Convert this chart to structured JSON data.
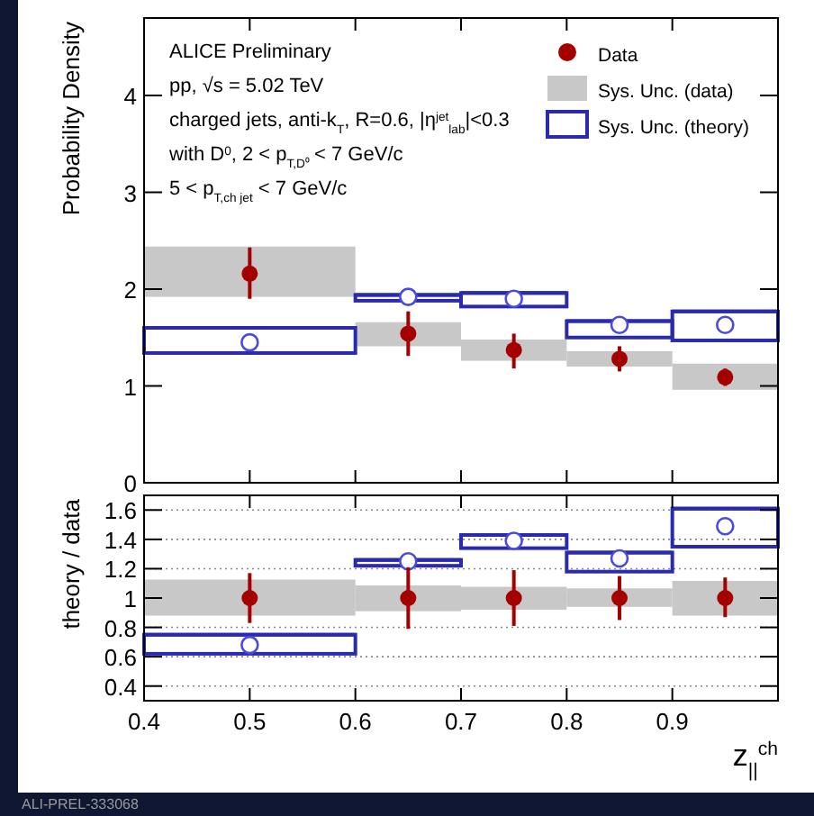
{
  "chart_data": [
    {
      "type": "scatter",
      "ylabel": "Probability Density",
      "xlim": [
        0.4,
        1.0
      ],
      "ylim": [
        0,
        4.8
      ],
      "xticks": [
        0.4,
        0.5,
        0.6,
        0.7,
        0.8,
        0.9,
        1.0
      ],
      "yticks": [
        0,
        1,
        2,
        3,
        4
      ],
      "tick_labels": "y",
      "legend": "top right",
      "annotations": [
        "ALICE Preliminary",
        "pp, √s = 5.02 TeV",
        "charged jets, anti-k$_{T}$, R=0.6, |η$^{jet}$$_{lab}$|<0.3",
        "with D$^{0}$, 2 < p$_{T,D⁰}$ < 7 GeV/c",
        "5 < p$_{T,ch jet}$ < 7 GeV/c"
      ],
      "series": [
        {
          "name": "Data",
          "marker": "circle",
          "color": "#a50000",
          "x": [
            0.5,
            0.65,
            0.75,
            0.85,
            0.95
          ],
          "values": [
            2.16,
            1.54,
            1.37,
            1.28,
            1.09
          ],
          "errors": [
            [
              1.9,
              2.43
            ],
            [
              1.31,
              1.77
            ],
            [
              1.18,
              1.54
            ],
            [
              1.15,
              1.41
            ],
            [
              1.0,
              1.18
            ]
          ]
        },
        {
          "name": "Sys. Unc. (data)",
          "type": "bar",
          "color": "#c8c8c8",
          "x": [
            0.5,
            0.65,
            0.75,
            0.85,
            0.95
          ],
          "xerrors": [
            0.1,
            0.05,
            0.05,
            0.05,
            0.05
          ],
          "base": [
            1.92,
            1.41,
            1.26,
            1.2,
            0.96
          ],
          "values": [
            0.51,
            0.24,
            0.21,
            0.15,
            0.26
          ]
        },
        {
          "marker": "circle",
          "line_style": "solid",
          "color": "#4a4ae0",
          "x": [
            0.5,
            0.65,
            0.75,
            0.85,
            0.95
          ],
          "values": [
            1.45,
            1.92,
            1.9,
            1.63,
            1.63
          ]
        },
        {
          "name": "Sys. Unc. (theory)",
          "type": "bar",
          "line_style": "solid",
          "color": "#2a2ab0",
          "x": [
            0.5,
            0.65,
            0.75,
            0.85,
            0.95
          ],
          "xerrors": [
            0.1,
            0.05,
            0.05,
            0.05,
            0.05
          ],
          "base": [
            1.34,
            1.88,
            1.82,
            1.5,
            1.47
          ],
          "values": [
            0.26,
            0.06,
            0.14,
            0.17,
            0.3
          ]
        }
      ]
    },
    {
      "type": "scatter",
      "ylabel": "theory / data",
      "xlabel": "z$_{||}$$^{ch}$",
      "xlim": [
        0.4,
        1.0
      ],
      "ylim": [
        0.3,
        1.7
      ],
      "xticks": [
        0.4,
        0.5,
        0.6,
        0.7,
        0.8,
        0.9
      ],
      "yticks": [
        0.4,
        0.6,
        0.8,
        1,
        1.2,
        1.4,
        1.6
      ],
      "grid": "y",
      "annotations": [
        "ALI-PREL-333068"
      ],
      "series": [
        {
          "marker": "circle",
          "color": "#a50000",
          "x": [
            0.5,
            0.65,
            0.75,
            0.85,
            0.95
          ],
          "values": [
            1,
            1,
            1,
            1,
            1
          ],
          "errors": [
            [
              0.83,
              1.17
            ],
            [
              0.79,
              1.21
            ],
            [
              0.81,
              1.19
            ],
            [
              0.85,
              1.15
            ],
            [
              0.87,
              1.14
            ]
          ]
        },
        {
          "type": "bar",
          "color": "#c8c8c8",
          "x": [
            0.5,
            0.65,
            0.75,
            0.85,
            0.95
          ],
          "xerrors": [
            0.1,
            0.05,
            0.05,
            0.05,
            0.05
          ],
          "base": [
            0.88,
            0.91,
            0.92,
            0.94,
            0.88
          ],
          "values": [
            0.24,
            0.17,
            0.15,
            0.12,
            0.23
          ]
        },
        {
          "marker": "circle",
          "line_style": "solid",
          "color": "#4a4ae0",
          "x": [
            0.5,
            0.65,
            0.75,
            0.85,
            0.95
          ],
          "values": [
            0.68,
            1.25,
            1.39,
            1.27,
            1.49
          ]
        },
        {
          "type": "bar",
          "line_style": "solid",
          "color": "#2a2ab0",
          "x": [
            0.5,
            0.65,
            0.75,
            0.85,
            0.95
          ],
          "xerrors": [
            0.1,
            0.05,
            0.05,
            0.05,
            0.05
          ],
          "base": [
            0.62,
            1.22,
            1.34,
            1.18,
            1.35
          ],
          "values": [
            0.13,
            0.04,
            0.09,
            0.13,
            0.26
          ]
        }
      ]
    }
  ]
}
